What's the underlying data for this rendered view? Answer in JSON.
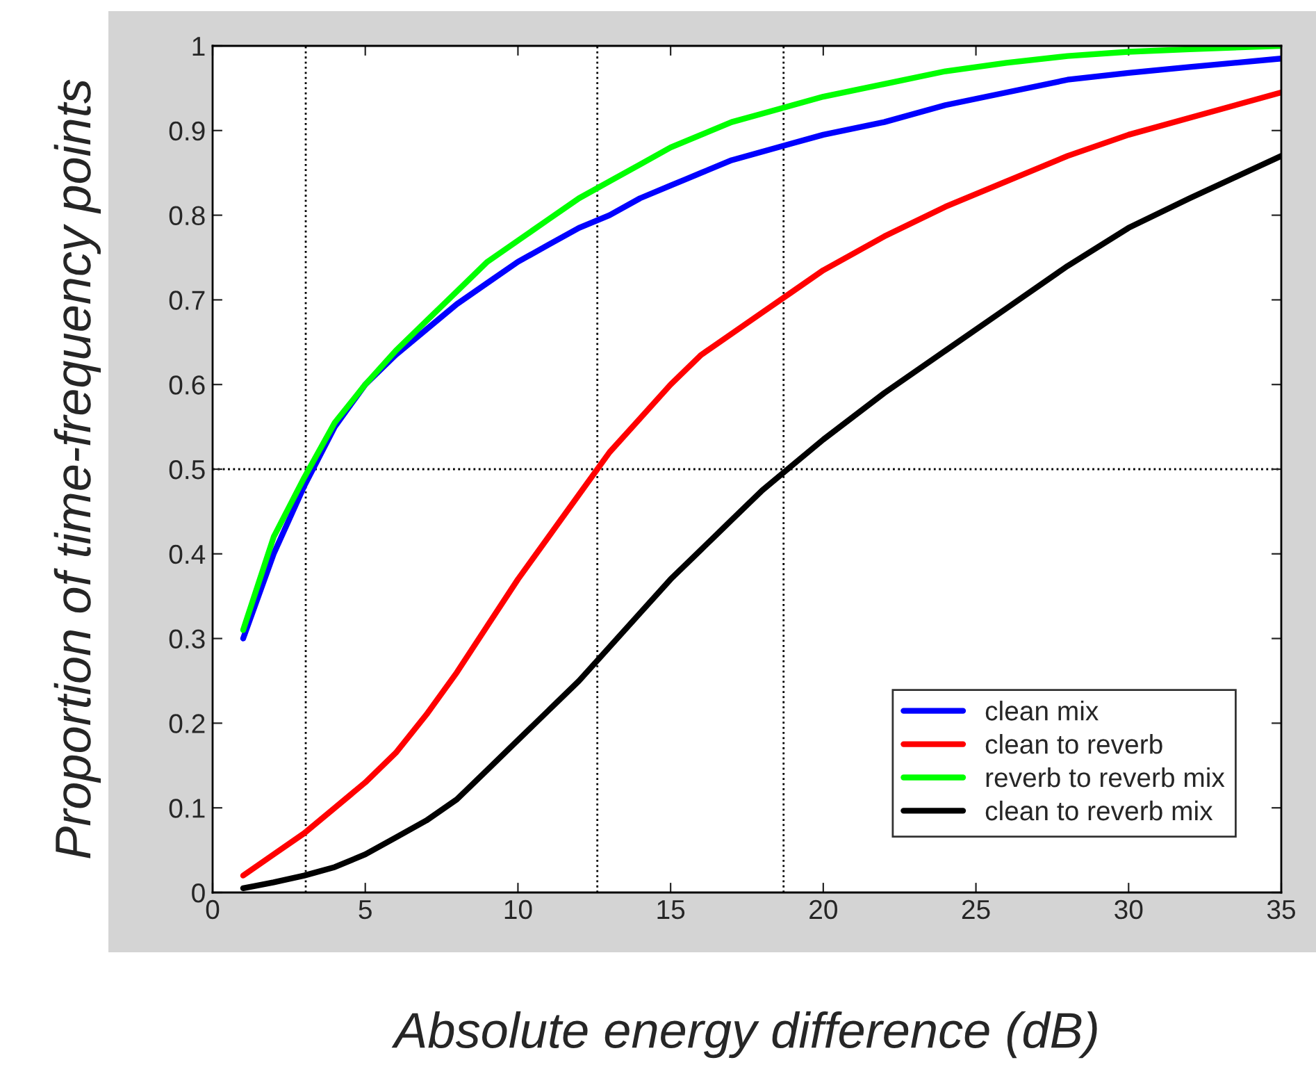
{
  "chart_data": {
    "type": "line",
    "xlabel": "Absolute energy difference (dB)",
    "ylabel": "Proportion of time-frequency points",
    "x": [
      1,
      2,
      3,
      4,
      5,
      6,
      7,
      8,
      9,
      10,
      11,
      12,
      13,
      14,
      15,
      16,
      17,
      18,
      19,
      20,
      22,
      24,
      26,
      28,
      30,
      32,
      35
    ],
    "series": [
      {
        "name": "clean mix",
        "color": "#0000ff",
        "values": [
          0.3,
          0.4,
          0.48,
          0.55,
          0.6,
          0.635,
          0.665,
          0.695,
          0.72,
          0.745,
          0.765,
          0.785,
          0.8,
          0.82,
          0.835,
          0.85,
          0.865,
          0.875,
          0.885,
          0.895,
          0.91,
          0.93,
          0.945,
          0.96,
          0.968,
          0.975,
          0.985
        ]
      },
      {
        "name": "clean to reverb",
        "color": "#ff0000",
        "values": [
          0.02,
          0.045,
          0.07,
          0.1,
          0.13,
          0.165,
          0.21,
          0.26,
          0.315,
          0.37,
          0.42,
          0.47,
          0.52,
          0.56,
          0.6,
          0.635,
          0.66,
          0.685,
          0.71,
          0.735,
          0.775,
          0.81,
          0.84,
          0.87,
          0.895,
          0.915,
          0.945
        ]
      },
      {
        "name": "reverb to reverb mix",
        "color": "#00ff00",
        "values": [
          0.31,
          0.42,
          0.49,
          0.555,
          0.6,
          0.64,
          0.675,
          0.71,
          0.745,
          0.77,
          0.795,
          0.82,
          0.84,
          0.86,
          0.88,
          0.895,
          0.91,
          0.92,
          0.93,
          0.94,
          0.955,
          0.97,
          0.98,
          0.988,
          0.993,
          0.996,
          1.0
        ]
      },
      {
        "name": "clean to reverb mix",
        "color": "#000000",
        "values": [
          0.005,
          0.012,
          0.02,
          0.03,
          0.045,
          0.065,
          0.085,
          0.11,
          0.145,
          0.18,
          0.215,
          0.25,
          0.29,
          0.33,
          0.37,
          0.405,
          0.44,
          0.475,
          0.505,
          0.535,
          0.59,
          0.64,
          0.69,
          0.74,
          0.785,
          0.82,
          0.87
        ]
      }
    ],
    "xlim": [
      0,
      35
    ],
    "ylim": [
      0,
      1
    ],
    "xticks": [
      0,
      5,
      10,
      15,
      20,
      25,
      30,
      35
    ],
    "yticks": [
      0,
      0.1,
      0.2,
      0.3,
      0.4,
      0.5,
      0.6,
      0.7,
      0.8,
      0.9,
      1
    ],
    "ref_lines": [
      {
        "axis": "x",
        "value": 3.05,
        "color": "#000000",
        "line_style": "dotted"
      },
      {
        "axis": "x",
        "value": 12.6,
        "color": "#000000",
        "line_style": "dotted"
      },
      {
        "axis": "x",
        "value": 18.7,
        "color": "#000000",
        "line_style": "dotted"
      },
      {
        "axis": "y",
        "value": 0.5,
        "color": "#000000",
        "line_style": "dotted"
      }
    ],
    "legend": "bottom right",
    "line_style": "solid",
    "grid": false
  }
}
